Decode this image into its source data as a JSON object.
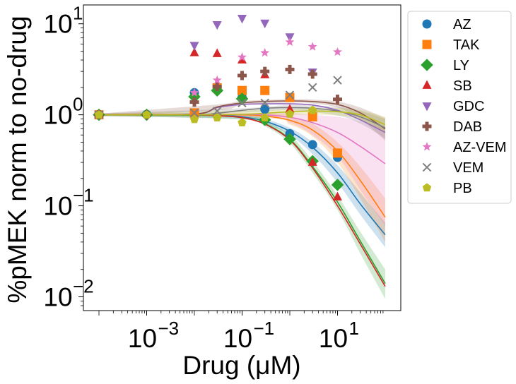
{
  "chart_data": {
    "type": "scatter",
    "xlabel": "Drug (μM)",
    "ylabel": "%pMEK norm to no-drug",
    "xscale": "log",
    "yscale": "log",
    "xlim": [
      0.0001,
      100
    ],
    "ylim": [
      0.008,
      15
    ],
    "x_ticks": [
      {
        "value": 0.001,
        "base": "10",
        "exp": "−3"
      },
      {
        "value": 0.1,
        "base": "10",
        "exp": "−1"
      },
      {
        "value": 10,
        "base": "10",
        "exp": "1"
      }
    ],
    "y_ticks": [
      {
        "value": 0.01,
        "base": "10",
        "exp": "−2"
      },
      {
        "value": 0.1,
        "base": "10",
        "exp": "−1"
      },
      {
        "value": 1,
        "base": "10",
        "exp": "0"
      },
      {
        "value": 10,
        "base": "10",
        "exp": "1"
      }
    ],
    "legend_position": "outside-right",
    "grid": false,
    "baseline": {
      "x": 0.0001,
      "y": 1.0
    },
    "series": [
      {
        "name": "AZ",
        "marker": "circle",
        "color": "#1f77b4",
        "points": [
          [
            0.001,
            1.01
          ],
          [
            0.01,
            1.75
          ],
          [
            0.1,
            1.55
          ],
          [
            0.3,
            1.15
          ],
          [
            1,
            0.62
          ],
          [
            3,
            0.47
          ],
          [
            10,
            0.34
          ]
        ],
        "fit": [
          [
            0.0001,
            1.0
          ],
          [
            0.01,
            1.0
          ],
          [
            0.03,
            0.99
          ],
          [
            0.1,
            0.95
          ],
          [
            0.3,
            0.85
          ],
          [
            1,
            0.66
          ],
          [
            3,
            0.44
          ],
          [
            10,
            0.23
          ],
          [
            30,
            0.105
          ],
          [
            100,
            0.048
          ]
        ],
        "band": [
          [
            0.0001,
            0.97,
            1.03
          ],
          [
            0.1,
            0.9,
            1.0
          ],
          [
            0.3,
            0.8,
            0.9
          ],
          [
            1,
            0.6,
            0.72
          ],
          [
            3,
            0.37,
            0.5
          ],
          [
            10,
            0.18,
            0.28
          ],
          [
            30,
            0.08,
            0.14
          ],
          [
            100,
            0.035,
            0.065
          ]
        ]
      },
      {
        "name": "TAK",
        "marker": "square",
        "color": "#ff7f0e",
        "points": [
          [
            0.01,
            1.05
          ],
          [
            0.03,
            1.98
          ],
          [
            0.1,
            1.85
          ],
          [
            0.3,
            1.85
          ],
          [
            1,
            1.55
          ],
          [
            3,
            0.95
          ],
          [
            10,
            0.38
          ]
        ],
        "fit": [
          [
            0.0001,
            1.0
          ],
          [
            0.01,
            1.01
          ],
          [
            0.1,
            1.0
          ],
          [
            0.3,
            0.97
          ],
          [
            1,
            0.87
          ],
          [
            3,
            0.68
          ],
          [
            10,
            0.4
          ],
          [
            30,
            0.19
          ],
          [
            100,
            0.075
          ]
        ],
        "band": [
          [
            0.0001,
            0.97,
            1.03
          ],
          [
            0.3,
            0.92,
            1.02
          ],
          [
            1,
            0.78,
            0.96
          ],
          [
            3,
            0.58,
            0.8
          ],
          [
            10,
            0.3,
            0.5
          ],
          [
            30,
            0.12,
            0.27
          ],
          [
            100,
            0.04,
            0.12
          ]
        ]
      },
      {
        "name": "LY",
        "marker": "diamond",
        "color": "#2ca02c",
        "points": [
          [
            0.001,
            1.0
          ],
          [
            0.01,
            1.58
          ],
          [
            0.03,
            1.85
          ],
          [
            0.1,
            1.5
          ],
          [
            0.3,
            0.88
          ],
          [
            1,
            0.54
          ],
          [
            3,
            0.31
          ],
          [
            10,
            0.17
          ]
        ],
        "fit": [
          [
            0.0001,
            1.0
          ],
          [
            0.01,
            0.99
          ],
          [
            0.03,
            0.98
          ],
          [
            0.1,
            0.93
          ],
          [
            0.3,
            0.8
          ],
          [
            1,
            0.54
          ],
          [
            3,
            0.27
          ],
          [
            10,
            0.11
          ],
          [
            30,
            0.041
          ],
          [
            100,
            0.014
          ]
        ],
        "band": [
          [
            0.0001,
            0.97,
            1.03
          ],
          [
            0.1,
            0.89,
            0.97
          ],
          [
            0.3,
            0.75,
            0.85
          ],
          [
            1,
            0.49,
            0.6
          ],
          [
            3,
            0.23,
            0.31
          ],
          [
            10,
            0.09,
            0.13
          ],
          [
            30,
            0.03,
            0.052
          ],
          [
            100,
            0.0095,
            0.02
          ]
        ]
      },
      {
        "name": "SB",
        "marker": "triangle-up",
        "color": "#d62728",
        "points": [
          [
            0.01,
            4.8
          ],
          [
            0.03,
            4.7
          ],
          [
            0.1,
            4.0
          ],
          [
            0.3,
            2.75
          ],
          [
            1,
            1.15
          ],
          [
            3,
            0.3
          ],
          [
            10,
            0.125
          ]
        ],
        "fit": [
          [
            0.0001,
            1.0
          ],
          [
            0.01,
            1.0
          ],
          [
            0.03,
            0.98
          ],
          [
            0.1,
            0.93
          ],
          [
            0.3,
            0.79
          ],
          [
            1,
            0.53
          ],
          [
            3,
            0.26
          ],
          [
            10,
            0.1
          ],
          [
            30,
            0.038
          ],
          [
            100,
            0.013
          ]
        ],
        "band": []
      },
      {
        "name": "GDC",
        "marker": "triangle-down",
        "color": "#9467bd",
        "points": [
          [
            0.01,
            5.8
          ],
          [
            0.03,
            9.8
          ],
          [
            0.1,
            11.5
          ],
          [
            0.3,
            10.2
          ],
          [
            1,
            7.2
          ],
          [
            3,
            2.95
          ]
        ],
        "fit": [
          [
            0.0001,
            1.0
          ],
          [
            0.01,
            1.02
          ],
          [
            0.03,
            1.2
          ],
          [
            0.1,
            1.3
          ],
          [
            0.3,
            1.32
          ],
          [
            1,
            1.32
          ],
          [
            3,
            1.28
          ],
          [
            10,
            1.12
          ],
          [
            30,
            0.88
          ],
          [
            100,
            0.64
          ]
        ],
        "band": []
      },
      {
        "name": "DAB",
        "marker": "plus",
        "color": "#8c564b",
        "points": [
          [
            0.001,
            1.0
          ],
          [
            0.01,
            1.38
          ],
          [
            0.03,
            2.05
          ],
          [
            0.1,
            2.7
          ],
          [
            0.3,
            3.0
          ],
          [
            1,
            3.15
          ],
          [
            3,
            2.8
          ],
          [
            10,
            1.48
          ]
        ],
        "fit": [
          [
            0.0001,
            1.0
          ],
          [
            0.01,
            1.02
          ],
          [
            0.03,
            1.22
          ],
          [
            0.1,
            1.35
          ],
          [
            0.3,
            1.4
          ],
          [
            1,
            1.42
          ],
          [
            3,
            1.4
          ],
          [
            10,
            1.3
          ],
          [
            30,
            1.05
          ],
          [
            100,
            0.7
          ]
        ],
        "band": [
          [
            0.0001,
            0.97,
            1.03
          ],
          [
            0.03,
            1.12,
            1.3
          ],
          [
            0.1,
            1.28,
            1.42
          ],
          [
            1,
            1.36,
            1.48
          ],
          [
            3,
            1.33,
            1.47
          ],
          [
            10,
            1.2,
            1.4
          ],
          [
            30,
            0.9,
            1.2
          ],
          [
            100,
            0.52,
            0.92
          ]
        ]
      },
      {
        "name": "AZ-VEM",
        "marker": "star",
        "color": "#e377c2",
        "points": [
          [
            0.01,
            1.75
          ],
          [
            0.03,
            2.4
          ],
          [
            0.1,
            4.3
          ],
          [
            0.3,
            4.8
          ],
          [
            1,
            6.3
          ],
          [
            3,
            5.6
          ],
          [
            10,
            4.9
          ]
        ],
        "fit": [
          [
            0.0001,
            1.0
          ],
          [
            0.01,
            1.0
          ],
          [
            0.1,
            1.01
          ],
          [
            0.3,
            1.0
          ],
          [
            1,
            0.94
          ],
          [
            3,
            0.82
          ],
          [
            10,
            0.64
          ],
          [
            30,
            0.45
          ],
          [
            100,
            0.29
          ]
        ],
        "band": [
          [
            0.0001,
            0.97,
            1.03
          ],
          [
            0.3,
            0.95,
            1.05
          ],
          [
            1,
            0.82,
            1.05
          ],
          [
            3,
            0.6,
            1.0
          ],
          [
            10,
            0.35,
            0.95
          ],
          [
            30,
            0.15,
            0.85
          ],
          [
            100,
            0.06,
            0.72
          ]
        ]
      },
      {
        "name": "VEM",
        "marker": "x",
        "color": "#7f7f7f",
        "points": [
          [
            0.01,
            1.05
          ],
          [
            0.03,
            1.1
          ],
          [
            0.1,
            1.35
          ],
          [
            0.3,
            1.35
          ],
          [
            1,
            1.65
          ],
          [
            3,
            2.0
          ],
          [
            10,
            2.4
          ]
        ],
        "fit": [
          [
            0.0001,
            1.0
          ],
          [
            0.01,
            1.0
          ],
          [
            0.03,
            1.04
          ],
          [
            0.1,
            1.12
          ],
          [
            0.3,
            1.18
          ],
          [
            1,
            1.2
          ],
          [
            3,
            1.18
          ],
          [
            10,
            1.1
          ],
          [
            30,
            0.95
          ],
          [
            100,
            0.72
          ]
        ],
        "band": [
          [
            0.0001,
            0.97,
            1.03
          ],
          [
            0.1,
            1.06,
            1.18
          ],
          [
            1,
            1.12,
            1.28
          ],
          [
            10,
            0.98,
            1.22
          ],
          [
            30,
            0.8,
            1.1
          ],
          [
            100,
            0.55,
            0.9
          ]
        ]
      },
      {
        "name": "PB",
        "marker": "pentagon",
        "color": "#bcbd22",
        "points": [
          [
            0.001,
            1.0
          ],
          [
            0.01,
            0.89
          ],
          [
            0.03,
            0.93
          ],
          [
            0.1,
            0.82
          ],
          [
            0.3,
            0.93
          ],
          [
            1,
            1.02
          ],
          [
            3,
            1.12
          ]
        ],
        "fit": [
          [
            0.0001,
            1.0
          ],
          [
            0.01,
            1.0
          ],
          [
            0.1,
            1.01
          ],
          [
            0.3,
            1.04
          ],
          [
            1,
            1.08
          ],
          [
            3,
            1.1
          ],
          [
            10,
            1.08
          ],
          [
            30,
            1.0
          ],
          [
            100,
            0.78
          ]
        ],
        "band": [
          [
            0.0001,
            0.97,
            1.03
          ],
          [
            1,
            1.0,
            1.15
          ],
          [
            10,
            0.98,
            1.18
          ],
          [
            30,
            0.88,
            1.12
          ],
          [
            100,
            0.62,
            0.95
          ]
        ]
      }
    ]
  }
}
